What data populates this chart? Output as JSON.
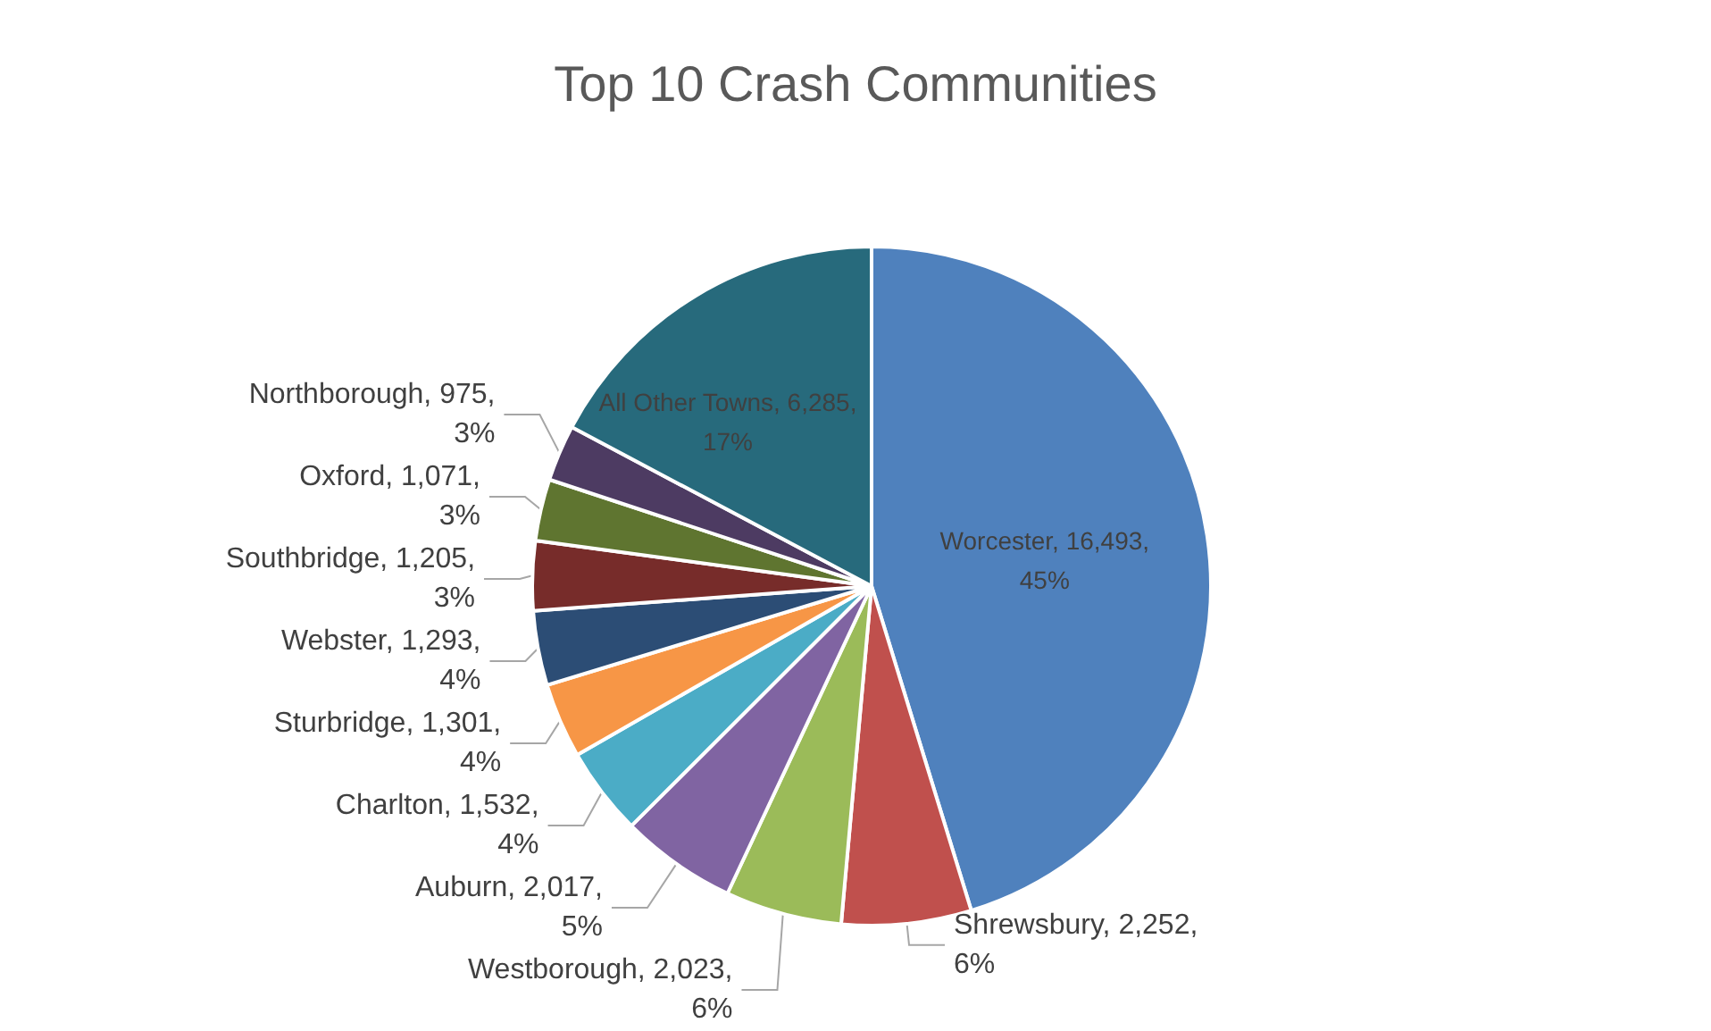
{
  "chart_data": {
    "type": "pie",
    "title": "Top 10 Crash Communities",
    "categories": [
      "Worcester",
      "Shrewsbury",
      "Westborough",
      "Auburn",
      "Charlton",
      "Sturbridge",
      "Webster",
      "Southbridge",
      "Oxford",
      "Northborough",
      "All Other Towns"
    ],
    "values": [
      16493,
      2252,
      2023,
      2017,
      1532,
      1301,
      1293,
      1205,
      1071,
      975,
      6285
    ],
    "value_labels": [
      "16,493, 45%",
      "2,252, 6%",
      "2,023, 6%",
      "2,017, 5%",
      "1,532, 4%",
      "1,301, 4%",
      "1,293, 4%",
      "1,205, 3%",
      "1,071, 3%",
      "975, 3%",
      "6,285, 17%"
    ],
    "colors": [
      "#4f81bd",
      "#c0504d",
      "#9bbb59",
      "#8064a2",
      "#4bacc6",
      "#f79646",
      "#2c4d75",
      "#772c2a",
      "#5f7530",
      "#4d3b62",
      "#276a7c"
    ],
    "legend": false
  }
}
